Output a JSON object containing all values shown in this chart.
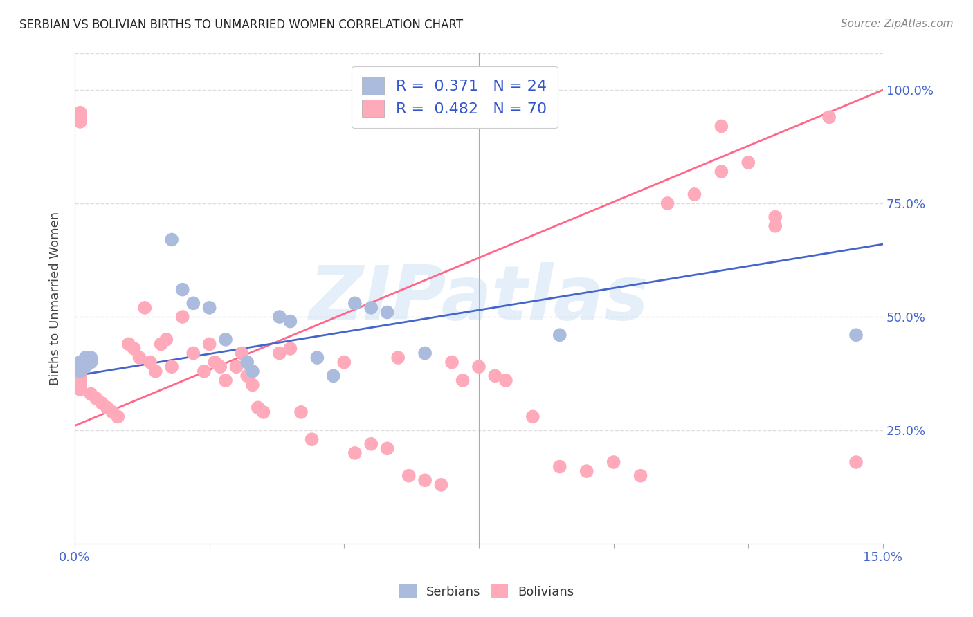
{
  "title": "SERBIAN VS BOLIVIAN BIRTHS TO UNMARRIED WOMEN CORRELATION CHART",
  "source": "Source: ZipAtlas.com",
  "ylabel": "Births to Unmarried Women",
  "watermark": "ZIPatlas",
  "serbian_color": "#aabbdd",
  "bolivian_color": "#ffaabb",
  "serbian_line_color": "#4466cc",
  "bolivian_line_color": "#ff6688",
  "legend_color": "#3355cc",
  "serbian_scatter_x": [
    0.001,
    0.001,
    0.001,
    0.002,
    0.002,
    0.002,
    0.003,
    0.003,
    0.018,
    0.02,
    0.022,
    0.025,
    0.028,
    0.032,
    0.033,
    0.038,
    0.04,
    0.045,
    0.048,
    0.052,
    0.055,
    0.058,
    0.065,
    0.09,
    0.145
  ],
  "serbian_scatter_y": [
    0.4,
    0.39,
    0.38,
    0.41,
    0.4,
    0.39,
    0.41,
    0.4,
    0.67,
    0.56,
    0.53,
    0.52,
    0.45,
    0.4,
    0.38,
    0.5,
    0.49,
    0.41,
    0.37,
    0.53,
    0.52,
    0.51,
    0.42,
    0.46,
    0.46
  ],
  "bolivian_scatter_x": [
    0.001,
    0.001,
    0.001,
    0.001,
    0.001,
    0.001,
    0.001,
    0.001,
    0.001,
    0.001,
    0.003,
    0.004,
    0.005,
    0.006,
    0.007,
    0.008,
    0.01,
    0.011,
    0.012,
    0.013,
    0.014,
    0.015,
    0.016,
    0.017,
    0.018,
    0.02,
    0.022,
    0.024,
    0.025,
    0.026,
    0.027,
    0.028,
    0.03,
    0.031,
    0.032,
    0.033,
    0.034,
    0.035,
    0.038,
    0.04,
    0.042,
    0.044,
    0.05,
    0.052,
    0.055,
    0.058,
    0.06,
    0.062,
    0.065,
    0.068,
    0.07,
    0.072,
    0.075,
    0.078,
    0.08,
    0.085,
    0.09,
    0.095,
    0.1,
    0.105,
    0.11,
    0.115,
    0.12,
    0.125,
    0.13,
    0.14,
    0.145,
    0.12,
    0.13
  ],
  "bolivian_scatter_y": [
    0.94,
    0.94,
    0.93,
    0.95,
    0.94,
    0.38,
    0.37,
    0.36,
    0.35,
    0.34,
    0.33,
    0.32,
    0.31,
    0.3,
    0.29,
    0.28,
    0.44,
    0.43,
    0.41,
    0.52,
    0.4,
    0.38,
    0.44,
    0.45,
    0.39,
    0.5,
    0.42,
    0.38,
    0.44,
    0.4,
    0.39,
    0.36,
    0.39,
    0.42,
    0.37,
    0.35,
    0.3,
    0.29,
    0.42,
    0.43,
    0.29,
    0.23,
    0.4,
    0.2,
    0.22,
    0.21,
    0.41,
    0.15,
    0.14,
    0.13,
    0.4,
    0.36,
    0.39,
    0.37,
    0.36,
    0.28,
    0.17,
    0.16,
    0.18,
    0.15,
    0.75,
    0.77,
    0.92,
    0.84,
    0.7,
    0.94,
    0.18,
    0.82,
    0.72
  ],
  "xlim": [
    0,
    0.15
  ],
  "ylim": [
    0,
    1.08
  ],
  "serbian_line_x": [
    0,
    0.15
  ],
  "serbian_line_y": [
    0.37,
    0.66
  ],
  "bolivian_line_x": [
    0,
    0.15
  ],
  "bolivian_line_y": [
    0.26,
    1.0
  ],
  "ytick_vals": [
    0.25,
    0.5,
    0.75,
    1.0
  ],
  "ytick_labels": [
    "25.0%",
    "50.0%",
    "75.0%",
    "100.0%"
  ],
  "grid_color": "#dddddd",
  "background_color": "#ffffff",
  "vline_x": 0.075
}
